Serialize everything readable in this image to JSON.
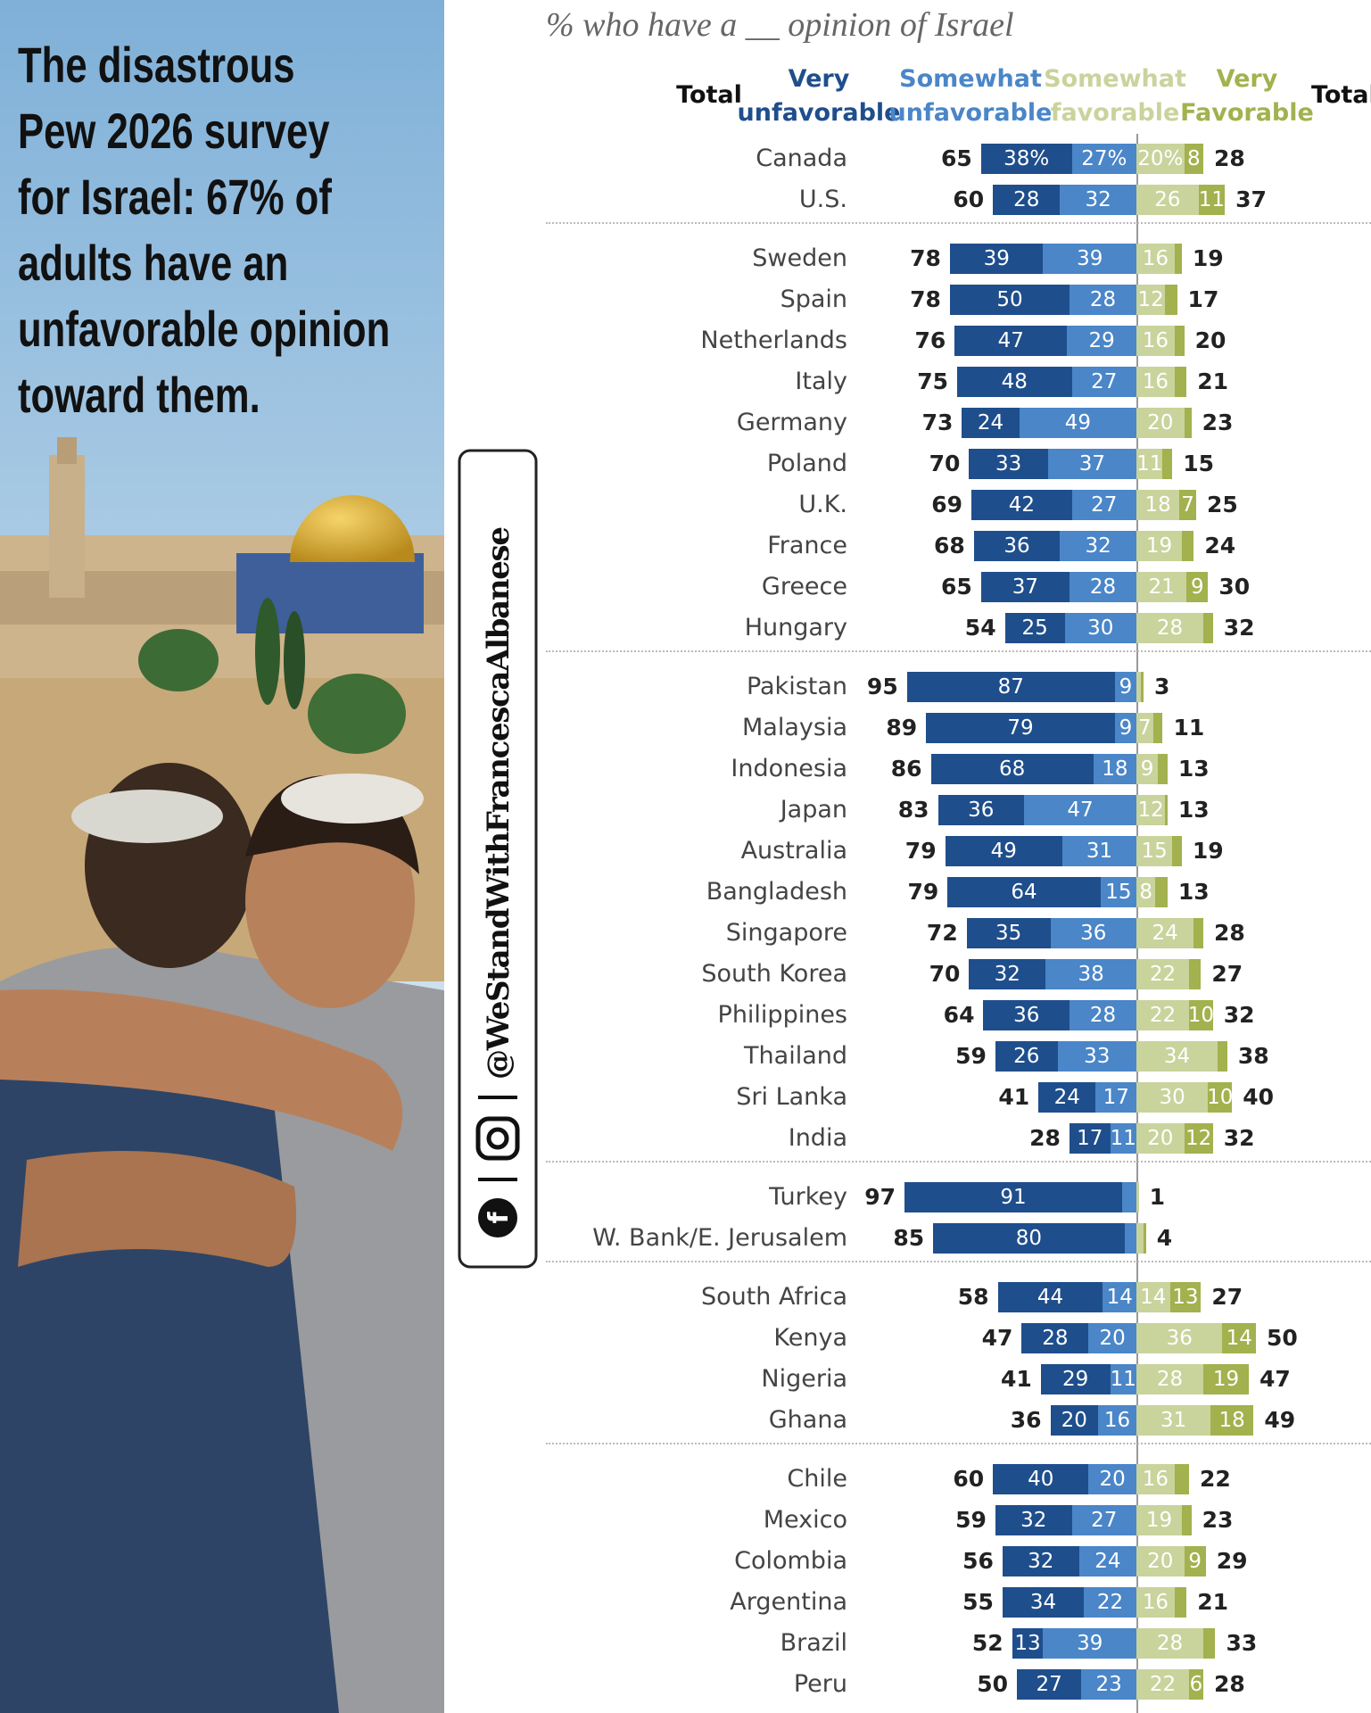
{
  "sidebar": {
    "headline": [
      "The disastrous",
      "Pew 2026 survey",
      "for Israel: 67% of",
      "adults have an",
      "unfavorable opinion",
      "toward them."
    ],
    "handle": "@WeStandWithFrancescaAlbanese"
  },
  "chart_data": {
    "type": "diverging_bar",
    "title": "% who have a __ opinion of Israel",
    "total_header": "Total",
    "series": [
      {
        "name": "Very unfavorable",
        "color": "#1f4e8c"
      },
      {
        "name": "Somewhat unfavorable",
        "color": "#4a86c8"
      },
      {
        "name": "Somewhat favorable",
        "color": "#c9d39c"
      },
      {
        "name": "Very Favorable",
        "color": "#a3b14e"
      }
    ],
    "groups": [
      {
        "categories": [
          "Canada",
          "U.S."
        ],
        "series": [
          {
            "values": [
              38,
              28
            ],
            "value_labels": [
              "38%",
              "28"
            ]
          },
          {
            "values": [
              27,
              32
            ],
            "value_labels": [
              "27%",
              "32"
            ]
          },
          {
            "values": [
              20,
              26
            ],
            "value_labels": [
              "20%",
              "26"
            ]
          },
          {
            "values": [
              8,
              11
            ]
          }
        ],
        "total_unfavorable": [
          65,
          60
        ],
        "total_favorable": [
          28,
          37
        ]
      },
      {
        "categories": [
          "Sweden",
          "Spain",
          "Netherlands",
          "Italy",
          "Germany",
          "Poland",
          "U.K.",
          "France",
          "Greece",
          "Hungary"
        ],
        "series": [
          {
            "values": [
              39,
              50,
              47,
              48,
              24,
              33,
              42,
              36,
              37,
              25
            ]
          },
          {
            "values": [
              39,
              28,
              29,
              27,
              49,
              37,
              27,
              32,
              28,
              30
            ]
          },
          {
            "values": [
              16,
              12,
              16,
              16,
              20,
              11,
              18,
              19,
              21,
              28
            ]
          },
          {
            "values": [
              3,
              5,
              4,
              5,
              3,
              4,
              7,
              5,
              9,
              4
            ],
            "value_labels": [
              null,
              null,
              null,
              null,
              null,
              null,
              "7",
              null,
              "9",
              null
            ]
          }
        ],
        "total_unfavorable": [
          78,
          78,
          76,
          75,
          73,
          70,
          69,
          68,
          65,
          54
        ],
        "total_favorable": [
          19,
          17,
          20,
          21,
          23,
          15,
          25,
          24,
          30,
          32
        ]
      },
      {
        "categories": [
          "Pakistan",
          "Malaysia",
          "Indonesia",
          "Japan",
          "Australia",
          "Bangladesh",
          "Singapore",
          "South Korea",
          "Philippines",
          "Thailand",
          "Sri Lanka",
          "India"
        ],
        "series": [
          {
            "values": [
              87,
              79,
              68,
              36,
              49,
              64,
              35,
              32,
              36,
              26,
              24,
              17
            ]
          },
          {
            "values": [
              9,
              9,
              18,
              47,
              31,
              15,
              36,
              38,
              28,
              33,
              17,
              11
            ]
          },
          {
            "values": [
              2,
              7,
              9,
              12,
              15,
              8,
              24,
              22,
              22,
              34,
              30,
              20
            ],
            "value_labels": [
              null,
              "7",
              "9",
              "12",
              "15",
              "8",
              "24",
              "22",
              "22",
              "34",
              "30",
              "20"
            ]
          },
          {
            "values": [
              1,
              4,
              4,
              1,
              4,
              5,
              4,
              5,
              10,
              4,
              10,
              12
            ],
            "value_labels": [
              null,
              null,
              null,
              null,
              null,
              null,
              null,
              null,
              "10",
              null,
              "10",
              "12"
            ]
          }
        ],
        "total_unfavorable": [
          95,
          89,
          86,
          83,
          79,
          79,
          72,
          70,
          64,
          59,
          41,
          28
        ],
        "total_favorable": [
          3,
          11,
          13,
          13,
          19,
          13,
          28,
          27,
          32,
          38,
          40,
          32
        ]
      },
      {
        "categories": [
          "Turkey",
          "W. Bank/E. Jerusalem"
        ],
        "series": [
          {
            "values": [
              91,
              80
            ]
          },
          {
            "values": [
              6,
              5
            ],
            "value_labels": [
              null,
              null
            ]
          },
          {
            "values": [
              1,
              3
            ],
            "value_labels": [
              null,
              null
            ]
          },
          {
            "values": [
              0,
              1
            ],
            "value_labels": [
              null,
              null
            ]
          }
        ],
        "total_unfavorable": [
          97,
          85
        ],
        "total_favorable": [
          1,
          4
        ]
      },
      {
        "categories": [
          "South Africa",
          "Kenya",
          "Nigeria",
          "Ghana"
        ],
        "series": [
          {
            "values": [
              44,
              28,
              29,
              20
            ]
          },
          {
            "values": [
              14,
              20,
              11,
              16
            ]
          },
          {
            "values": [
              14,
              36,
              28,
              31
            ]
          },
          {
            "values": [
              13,
              14,
              19,
              18
            ]
          }
        ],
        "total_unfavorable": [
          58,
          47,
          41,
          36
        ],
        "total_favorable": [
          27,
          50,
          47,
          49
        ]
      },
      {
        "categories": [
          "Chile",
          "Mexico",
          "Colombia",
          "Argentina",
          "Brazil",
          "Peru"
        ],
        "series": [
          {
            "values": [
              40,
              32,
              32,
              34,
              13,
              27
            ]
          },
          {
            "values": [
              20,
              27,
              24,
              22,
              39,
              23
            ]
          },
          {
            "values": [
              16,
              19,
              20,
              16,
              28,
              22
            ]
          },
          {
            "values": [
              6,
              4,
              9,
              5,
              5,
              6
            ],
            "value_labels": [
              null,
              null,
              "9",
              null,
              null,
              "6"
            ]
          }
        ],
        "total_unfavorable": [
          60,
          59,
          56,
          55,
          52,
          50
        ],
        "total_favorable": [
          22,
          23,
          29,
          21,
          33,
          28
        ]
      }
    ]
  }
}
